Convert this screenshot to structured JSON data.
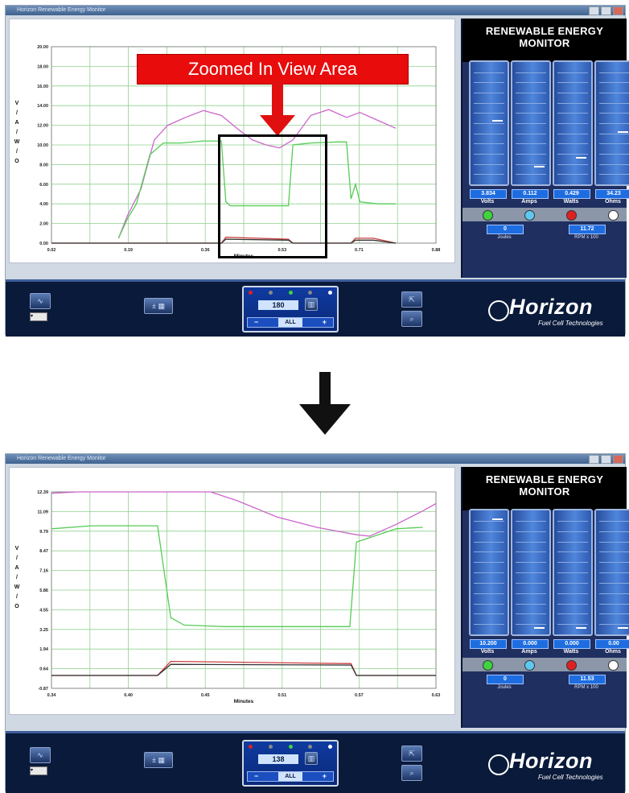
{
  "window_title": "Horizon Renewable Energy Monitor",
  "annotation": "Zoomed In View Area",
  "monitor": {
    "title": "RENEWABLE ENERGY MONITOR",
    "units": [
      "Volts",
      "Amps",
      "Watts",
      "Ohms"
    ],
    "joules_label": "Joules",
    "rpm_label": "RPM x 100",
    "led_colors": [
      "#3ed43e",
      "#5fc8f0",
      "#e02020",
      "#ffffff"
    ]
  },
  "logo": {
    "name": "Horizon",
    "tagline": "Fuel Cell Technologies"
  },
  "colors": {
    "series_1": "#cc66cc",
    "series_2": "#55cc55",
    "series_3": "#d04040",
    "series_4": "#333333"
  },
  "top": {
    "chart_data": {
      "type": "line",
      "xlabel": "Minutes",
      "ylabel": "V / A / W / O",
      "x_ticks": [
        "0.02",
        "0.19",
        "0.36",
        "0.53",
        "0.71",
        "0.88"
      ],
      "y_ticks": [
        "0.00",
        "2.00",
        "4.00",
        "6.00",
        "8.00",
        "10.00",
        "12.00",
        "14.00",
        "16.00",
        "18.00",
        "20.00"
      ],
      "xlim": [
        0.02,
        0.88
      ],
      "ylim": [
        0,
        20
      ],
      "series": [
        {
          "color": "#cc66cc",
          "values": [
            [
              0.17,
              0.5
            ],
            [
              0.19,
              2.8
            ],
            [
              0.22,
              5.5
            ],
            [
              0.25,
              10.5
            ],
            [
              0.28,
              12.0
            ],
            [
              0.32,
              12.8
            ],
            [
              0.36,
              13.5
            ],
            [
              0.4,
              13.0
            ],
            [
              0.44,
              11.5
            ],
            [
              0.47,
              10.5
            ],
            [
              0.5,
              10.0
            ],
            [
              0.53,
              9.7
            ],
            [
              0.56,
              10.5
            ],
            [
              0.6,
              13.0
            ],
            [
              0.64,
              13.6
            ],
            [
              0.68,
              12.8
            ],
            [
              0.71,
              13.3
            ],
            [
              0.75,
              12.5
            ],
            [
              0.79,
              11.7
            ]
          ]
        },
        {
          "color": "#55cc55",
          "values": [
            [
              0.17,
              0.5
            ],
            [
              0.19,
              2.5
            ],
            [
              0.21,
              4.0
            ],
            [
              0.24,
              9.0
            ],
            [
              0.27,
              10.2
            ],
            [
              0.31,
              10.2
            ],
            [
              0.36,
              10.4
            ],
            [
              0.4,
              10.4
            ],
            [
              0.41,
              4.2
            ],
            [
              0.42,
              3.8
            ],
            [
              0.5,
              3.8
            ],
            [
              0.55,
              3.8
            ],
            [
              0.56,
              10.0
            ],
            [
              0.6,
              10.2
            ],
            [
              0.66,
              10.3
            ],
            [
              0.68,
              10.3
            ],
            [
              0.69,
              4.5
            ],
            [
              0.7,
              6.0
            ],
            [
              0.71,
              4.2
            ],
            [
              0.75,
              4.0
            ],
            [
              0.79,
              4.0
            ]
          ]
        },
        {
          "color": "#d04040",
          "values": [
            [
              0.02,
              0.0
            ],
            [
              0.4,
              0.0
            ],
            [
              0.41,
              0.6
            ],
            [
              0.55,
              0.4
            ],
            [
              0.56,
              0.0
            ],
            [
              0.69,
              0.0
            ],
            [
              0.7,
              0.5
            ],
            [
              0.74,
              0.5
            ],
            [
              0.79,
              0.0
            ]
          ]
        },
        {
          "color": "#333333",
          "values": [
            [
              0.02,
              0.0
            ],
            [
              0.4,
              0.0
            ],
            [
              0.41,
              0.4
            ],
            [
              0.55,
              0.3
            ],
            [
              0.56,
              0.0
            ],
            [
              0.69,
              0.0
            ],
            [
              0.7,
              0.3
            ],
            [
              0.74,
              0.3
            ],
            [
              0.79,
              0.0
            ]
          ]
        }
      ]
    },
    "gauges": {
      "readouts": [
        "3.834",
        "0.112",
        "0.429",
        "34.23"
      ],
      "levels": [
        0.52,
        0.12,
        0.2,
        0.42
      ]
    },
    "joules": "0",
    "rpm": "11.72",
    "count": "180",
    "all": "ALL"
  },
  "bottom": {
    "chart_data": {
      "type": "line",
      "xlabel": "Minutes",
      "ylabel": "V / A / W / O",
      "x_ticks": [
        "0.34",
        "0.40",
        "0.45",
        "0.51",
        "0.57",
        "0.63"
      ],
      "y_ticks": [
        "-0.87",
        "0.64",
        "1.94",
        "3.25",
        "4.55",
        "5.86",
        "7.16",
        "8.47",
        "9.79",
        "11.09",
        "12.39"
      ],
      "xlim": [
        0.34,
        0.63
      ],
      "ylim": [
        -0.87,
        12.39
      ],
      "series": [
        {
          "color": "#cc66cc",
          "values": [
            [
              0.34,
              12.3
            ],
            [
              0.36,
              12.39
            ],
            [
              0.4,
              12.39
            ],
            [
              0.44,
              12.39
            ],
            [
              0.46,
              12.39
            ],
            [
              0.48,
              11.8
            ],
            [
              0.51,
              10.7
            ],
            [
              0.54,
              10.0
            ],
            [
              0.57,
              9.5
            ],
            [
              0.58,
              9.4
            ],
            [
              0.6,
              10.2
            ],
            [
              0.62,
              11.1
            ],
            [
              0.63,
              11.6
            ]
          ]
        },
        {
          "color": "#55cc55",
          "values": [
            [
              0.34,
              9.9
            ],
            [
              0.37,
              10.1
            ],
            [
              0.4,
              10.1
            ],
            [
              0.42,
              10.1
            ],
            [
              0.43,
              3.9
            ],
            [
              0.44,
              3.4
            ],
            [
              0.47,
              3.3
            ],
            [
              0.51,
              3.3
            ],
            [
              0.54,
              3.3
            ],
            [
              0.565,
              3.3
            ],
            [
              0.57,
              9.0
            ],
            [
              0.6,
              9.9
            ],
            [
              0.62,
              10.0
            ]
          ]
        },
        {
          "color": "#d04040",
          "values": [
            [
              0.34,
              0.0
            ],
            [
              0.42,
              0.0
            ],
            [
              0.43,
              0.95
            ],
            [
              0.566,
              0.8
            ],
            [
              0.57,
              0.0
            ],
            [
              0.63,
              0.0
            ]
          ]
        },
        {
          "color": "#333333",
          "values": [
            [
              0.34,
              0.0
            ],
            [
              0.42,
              0.0
            ],
            [
              0.43,
              0.75
            ],
            [
              0.566,
              0.7
            ],
            [
              0.57,
              0.0
            ],
            [
              0.63,
              0.0
            ]
          ]
        }
      ]
    },
    "gauges": {
      "readouts": [
        "10.200",
        "0.000",
        "0.000",
        "0.00"
      ],
      "levels": [
        0.96,
        0.02,
        0.02,
        0.02
      ]
    },
    "joules": "0",
    "rpm": "11.53",
    "count": "138",
    "all": "ALL"
  }
}
